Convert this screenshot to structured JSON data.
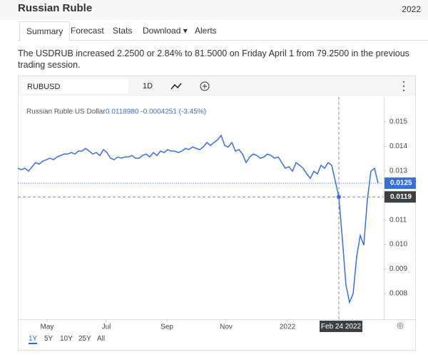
{
  "header": {
    "title": "Russian Ruble",
    "year": "2022"
  },
  "tabs": [
    "Summary",
    "Forecast",
    "Stats",
    "Download",
    "Alerts"
  ],
  "description": "The USDRUB increased 2.2500 or 2.84% to 81.5000 on Friday April 1 from 79.2500 in the previous trading session.",
  "toolbar": {
    "symbol": "RUBUSD",
    "interval": "1D"
  },
  "ranges": [
    "1Y",
    "5Y",
    "10Y",
    "25Y",
    "All"
  ],
  "chart_data": {
    "type": "line",
    "legend_values": "0.0118980 -0.0004251 (-3.45%)",
    "series": [
      {
        "name": "Russian Ruble US Dollar",
        "color": "#3a6fd8",
        "values": [
          0.01311,
          0.01305,
          0.01311,
          0.01299,
          0.01317,
          0.01334,
          0.01328,
          0.0134,
          0.01346,
          0.01352,
          0.01346,
          0.01357,
          0.01363,
          0.01369,
          0.01369,
          0.01375,
          0.01369,
          0.01381,
          0.01381,
          0.01392,
          0.01381,
          0.01369,
          0.01375,
          0.01363,
          0.01387,
          0.01375,
          0.01352,
          0.01346,
          0.01357,
          0.01352,
          0.01357,
          0.01357,
          0.01363,
          0.01352,
          0.01352,
          0.01363,
          0.01369,
          0.01357,
          0.01375,
          0.01363,
          0.01381,
          0.01375,
          0.01387,
          0.01381,
          0.01381,
          0.01375,
          0.01381,
          0.01392,
          0.01387,
          0.01398,
          0.01392,
          0.01387,
          0.01398,
          0.01416,
          0.01404,
          0.01416,
          0.01427,
          0.01445,
          0.01404,
          0.01398,
          0.01416,
          0.01381,
          0.01387,
          0.01369,
          0.01334,
          0.01357,
          0.01369,
          0.01363,
          0.01352,
          0.01357,
          0.01369,
          0.01363,
          0.01352,
          0.01357,
          0.01334,
          0.01311,
          0.01317,
          0.01299,
          0.01334,
          0.01323,
          0.01311,
          0.01288,
          0.0127,
          0.01299,
          0.01288,
          0.01323,
          0.01311,
          0.01334,
          0.01323,
          0.01259,
          0.01194,
          0.0102,
          0.00834,
          0.00764,
          0.00799,
          0.0095,
          0.01037,
          0.00997,
          0.01183,
          0.01299,
          0.01311,
          0.0125
        ]
      }
    ],
    "last_value_label": "0.0125",
    "crosshair": {
      "index": 90,
      "x_label": "Feb 24 2022",
      "y_label": "0.0119"
    },
    "xlim": [
      0,
      102.6
    ],
    "xticks": [
      {
        "value": 8.2,
        "label": "May"
      },
      {
        "value": 24.8,
        "label": "Jul"
      },
      {
        "value": 41.8,
        "label": "Sep"
      },
      {
        "value": 58.4,
        "label": "Nov"
      },
      {
        "value": 75.6,
        "label": "2022"
      }
    ],
    "ylim": [
      0.00695,
      0.01602
    ],
    "yticks": [
      0.008,
      0.009,
      {
        "value": 0.01,
        "label": "0.010"
      },
      0.011,
      0.013,
      0.014,
      0.015
    ],
    "grid": false
  }
}
